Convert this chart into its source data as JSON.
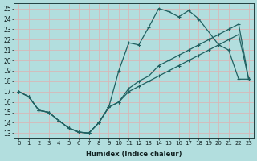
{
  "xlabel": "Humidex (Indice chaleur)",
  "bg_color": "#b2dede",
  "grid_color": "#d8b8b8",
  "line_color": "#206060",
  "xlim": [
    -0.5,
    23.5
  ],
  "ylim": [
    12.5,
    25.5
  ],
  "xticks": [
    0,
    1,
    2,
    3,
    4,
    5,
    6,
    7,
    8,
    9,
    10,
    11,
    12,
    13,
    14,
    15,
    16,
    17,
    18,
    19,
    20,
    21,
    22,
    23
  ],
  "yticks": [
    13,
    14,
    15,
    16,
    17,
    18,
    19,
    20,
    21,
    22,
    23,
    24,
    25
  ],
  "line1_x": [
    0,
    1,
    2,
    3,
    4,
    5,
    6,
    7,
    8,
    9,
    10,
    11,
    12,
    13,
    14,
    15,
    16,
    17,
    18,
    20,
    21,
    22,
    23
  ],
  "line1_y": [
    17,
    16.5,
    15.2,
    15.0,
    14.2,
    13.5,
    13.1,
    13.0,
    14.0,
    15.5,
    19.0,
    21.7,
    21.5,
    23.2,
    25.0,
    24.7,
    24.2,
    24.8,
    24.0,
    21.5,
    21.0,
    18.2,
    18.2
  ],
  "line2_x": [
    0,
    1,
    2,
    3,
    4,
    5,
    6,
    7,
    8,
    9,
    10,
    11,
    12,
    13,
    14,
    15,
    16,
    17,
    18,
    19,
    20,
    21,
    22,
    23
  ],
  "line2_y": [
    17,
    16.5,
    15.2,
    15.0,
    14.2,
    13.5,
    13.1,
    13.0,
    14.0,
    15.5,
    16.0,
    17.3,
    18.0,
    18.5,
    19.5,
    20.0,
    20.5,
    21.0,
    21.5,
    22.0,
    22.5,
    23.0,
    23.5,
    18.2
  ],
  "line3_x": [
    0,
    1,
    2,
    3,
    4,
    5,
    6,
    7,
    8,
    9,
    10,
    11,
    12,
    13,
    14,
    15,
    16,
    17,
    18,
    19,
    20,
    21,
    22,
    23
  ],
  "line3_y": [
    17,
    16.5,
    15.2,
    15.0,
    14.2,
    13.5,
    13.1,
    13.0,
    14.0,
    15.5,
    16.0,
    17.0,
    17.5,
    18.0,
    18.5,
    19.0,
    19.5,
    20.0,
    20.5,
    21.0,
    21.5,
    22.0,
    22.5,
    18.2
  ]
}
